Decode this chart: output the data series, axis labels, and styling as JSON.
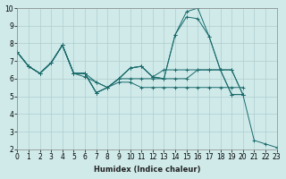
{
  "xlabel": "Humidex (Indice chaleur)",
  "bg_color": "#d0eaea",
  "line_color": "#1a6b6b",
  "grid_color": "#b0cccc",
  "xlim": [
    0,
    23
  ],
  "ylim": [
    2,
    10
  ],
  "xticks": [
    0,
    1,
    2,
    3,
    4,
    5,
    6,
    7,
    8,
    9,
    10,
    11,
    12,
    13,
    14,
    15,
    16,
    17,
    18,
    19,
    20,
    21,
    22,
    23
  ],
  "yticks": [
    2,
    3,
    4,
    5,
    6,
    7,
    8,
    9,
    10
  ],
  "series": [
    {
      "x": [
        0,
        1,
        2,
        3,
        4,
        5,
        6,
        7,
        8,
        9,
        10,
        11,
        12,
        13,
        14,
        15,
        16,
        17,
        18,
        19,
        20,
        21,
        22,
        23
      ],
      "y": [
        7.5,
        6.7,
        6.3,
        6.9,
        7.9,
        6.3,
        6.3,
        5.8,
        5.5,
        6.0,
        6.6,
        6.7,
        6.1,
        6.5,
        6.5,
        6.5,
        6.5,
        6.5,
        6.5,
        6.5,
        5.1,
        2.5,
        2.3,
        2.1
      ]
    },
    {
      "x": [
        0,
        1,
        2,
        3,
        4,
        5,
        6,
        7,
        8,
        9,
        10,
        11,
        12,
        13,
        14,
        15,
        16,
        17,
        18,
        19,
        20
      ],
      "y": [
        7.5,
        6.7,
        6.3,
        6.9,
        7.9,
        6.3,
        6.1,
        5.8,
        5.5,
        5.8,
        5.8,
        5.5,
        5.5,
        5.5,
        5.5,
        5.5,
        5.5,
        5.5,
        5.5,
        5.5,
        5.5
      ]
    },
    {
      "x": [
        0,
        1,
        2,
        3,
        4,
        5,
        6,
        7,
        8,
        9,
        10,
        11,
        12,
        13,
        14,
        15,
        16,
        17,
        18,
        19,
        20
      ],
      "y": [
        7.5,
        6.7,
        6.3,
        6.9,
        7.9,
        6.3,
        6.3,
        5.2,
        5.5,
        6.0,
        6.0,
        6.0,
        6.0,
        6.0,
        6.0,
        6.0,
        6.5,
        6.5,
        6.5,
        6.5,
        5.1
      ]
    },
    {
      "x": [
        0,
        1,
        2,
        3,
        4,
        5,
        6,
        7,
        8,
        9,
        10,
        11,
        12,
        13,
        14,
        15,
        16,
        17,
        18,
        19,
        20
      ],
      "y": [
        7.5,
        6.7,
        6.3,
        6.9,
        7.9,
        6.3,
        6.3,
        5.2,
        5.5,
        6.0,
        6.6,
        6.7,
        6.1,
        6.0,
        8.5,
        9.5,
        9.4,
        8.4,
        6.5,
        5.1,
        5.1
      ]
    },
    {
      "x": [
        0,
        1,
        2,
        3,
        4,
        5,
        6,
        7,
        8,
        9,
        10,
        11,
        12,
        13,
        14,
        15,
        16,
        17,
        18,
        19,
        20
      ],
      "y": [
        7.5,
        6.7,
        6.3,
        6.9,
        7.9,
        6.3,
        6.3,
        5.2,
        5.5,
        6.0,
        6.6,
        6.7,
        6.1,
        6.0,
        8.5,
        9.8,
        10.0,
        8.4,
        6.5,
        5.1,
        5.1
      ]
    }
  ],
  "tick_fontsize": 5.5,
  "xlabel_fontsize": 6,
  "marker_size": 2.5,
  "lw": 0.7
}
